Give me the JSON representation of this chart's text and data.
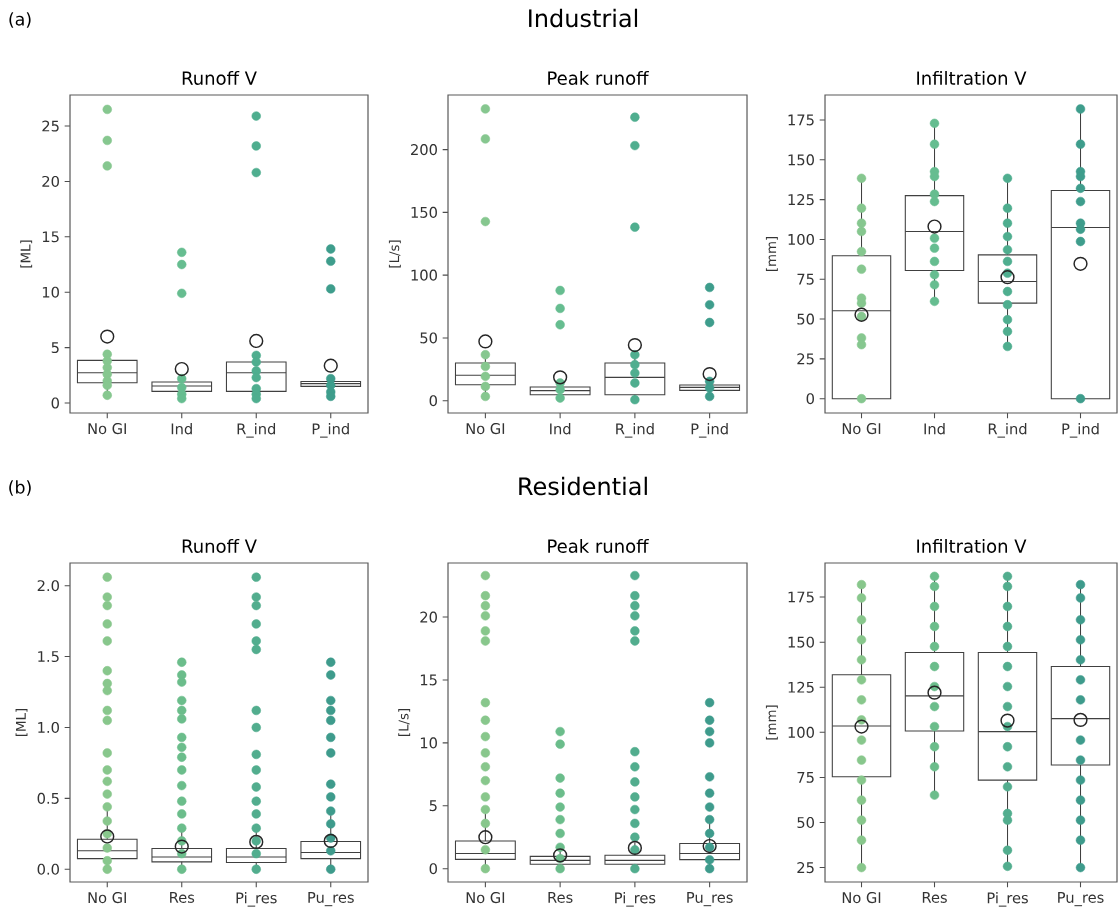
{
  "chart_data": [
    {
      "type": "box",
      "title": "Runoff V",
      "ylabel": "[ML]",
      "annotations": [
        "(a)",
        "Industrial"
      ],
      "categories": [
        "No GI",
        "Ind",
        "R_ind",
        "P_ind"
      ],
      "ylim": [
        -0.9,
        27.8
      ],
      "yticks": [
        0,
        5,
        10,
        15,
        20,
        25
      ],
      "boxes": [
        {
          "low": 0.7,
          "q1": 1.83,
          "median": 2.74,
          "q3": 3.85,
          "high": 4.4,
          "mean": 6.0
        },
        {
          "low": 0.4,
          "q1": 1.05,
          "median": 1.53,
          "q3": 1.9,
          "high": 2.2,
          "mean": 3.07
        },
        {
          "low": 0.4,
          "q1": 1.05,
          "median": 2.74,
          "q3": 3.7,
          "high": 4.3,
          "mean": 5.6
        },
        {
          "low": 0.6,
          "q1": 1.5,
          "median": 1.75,
          "q3": 1.95,
          "high": 2.2,
          "mean": 3.37
        }
      ],
      "series": [
        {
          "type": "scatter",
          "color": "#86c78f",
          "x": [
            "No GI",
            "No GI",
            "No GI",
            "No GI",
            "No GI",
            "No GI",
            "No GI",
            "No GI",
            "No GI",
            "No GI"
          ],
          "values": [
            26.5,
            23.7,
            21.4,
            4.4,
            3.8,
            3.2,
            2.6,
            2.0,
            1.6,
            0.7
          ]
        },
        {
          "type": "scatter",
          "color": "#66bd90",
          "x": [
            "Ind",
            "Ind",
            "Ind",
            "Ind",
            "Ind",
            "Ind",
            "Ind"
          ],
          "values": [
            13.6,
            12.5,
            9.9,
            2.2,
            1.4,
            0.8,
            0.4
          ]
        },
        {
          "type": "scatter",
          "color": "#4fae8f",
          "x": [
            "R_ind",
            "R_ind",
            "R_ind",
            "R_ind",
            "R_ind",
            "R_ind",
            "R_ind",
            "R_ind",
            "R_ind",
            "R_ind"
          ],
          "values": [
            25.9,
            23.2,
            20.8,
            4.3,
            3.7,
            2.9,
            2.3,
            1.3,
            0.8,
            0.4
          ]
        },
        {
          "type": "scatter",
          "color": "#3e9d8c",
          "x": [
            "P_ind",
            "P_ind",
            "P_ind",
            "P_ind",
            "P_ind",
            "P_ind",
            "P_ind"
          ],
          "values": [
            13.9,
            12.8,
            10.3,
            2.2,
            1.6,
            1.0,
            0.6
          ]
        }
      ]
    },
    {
      "type": "box",
      "title": "Peak runoff",
      "ylabel": "[L/s]",
      "categories": [
        "No GI",
        "Ind",
        "R_ind",
        "P_ind"
      ],
      "ylim": [
        -9.8,
        243.5
      ],
      "yticks": [
        0,
        50,
        100,
        150,
        200
      ],
      "boxes": [
        {
          "low": 3.4,
          "q1": 12.7,
          "median": 20.2,
          "q3": 30.0,
          "high": 36.6,
          "mean": 47.2
        },
        {
          "low": 2.1,
          "q1": 4.8,
          "median": 8.0,
          "q3": 10.9,
          "high": 14.1,
          "mean": 18.6
        },
        {
          "low": 0.8,
          "q1": 4.8,
          "median": 18.6,
          "q3": 30.0,
          "high": 36.6,
          "mean": 44.3
        },
        {
          "low": 3.4,
          "q1": 8.2,
          "median": 10.6,
          "q3": 12.5,
          "high": 15.4,
          "mean": 21.2
        }
      ],
      "series": [
        {
          "type": "scatter",
          "color": "#86c78f",
          "x": [
            "No GI",
            "No GI",
            "No GI",
            "No GI",
            "No GI",
            "No GI",
            "No GI",
            "No GI"
          ],
          "values": [
            232.4,
            208.5,
            142.7,
            36.6,
            27.3,
            19.4,
            11.4,
            3.4
          ]
        },
        {
          "type": "scatter",
          "color": "#66bd90",
          "x": [
            "Ind",
            "Ind",
            "Ind",
            "Ind",
            "Ind",
            "Ind"
          ],
          "values": [
            87.8,
            73.5,
            60.5,
            14.1,
            8.8,
            2.1
          ]
        },
        {
          "type": "scatter",
          "color": "#4fae8f",
          "x": [
            "R_ind",
            "R_ind",
            "R_ind",
            "R_ind",
            "R_ind",
            "R_ind",
            "R_ind",
            "R_ind",
            "R_ind"
          ],
          "values": [
            225.8,
            203.2,
            138.2,
            36.6,
            28.7,
            22.0,
            14.1,
            null,
            0.8
          ]
        },
        {
          "type": "scatter",
          "color": "#3e9d8c",
          "x": [
            "P_ind",
            "P_ind",
            "P_ind",
            "P_ind",
            "P_ind",
            "P_ind"
          ],
          "values": [
            90.2,
            76.4,
            62.3,
            15.4,
            10.1,
            3.4
          ]
        }
      ]
    },
    {
      "type": "box",
      "title": "Infiltration V",
      "ylabel": "[mm]",
      "categories": [
        "No GI",
        "Ind",
        "R_ind",
        "P_ind"
      ],
      "ylim": [
        -9.0,
        190.7
      ],
      "yticks": [
        0,
        25,
        50,
        75,
        100,
        125,
        150,
        175
      ],
      "boxes": [
        {
          "low": 0,
          "q1": 0,
          "median": 55.2,
          "q3": 89.7,
          "high": 138.4,
          "mean": 52.7
        },
        {
          "low": 61.1,
          "q1": 80.5,
          "median": 105.0,
          "q3": 127.5,
          "high": 172.9,
          "mean": 108.1
        },
        {
          "low": 32.8,
          "q1": 60.0,
          "median": 73.6,
          "q3": 90.3,
          "high": 138.4,
          "mean": 76.3
        },
        {
          "low": 0,
          "q1": 0,
          "median": 107.5,
          "q3": 130.7,
          "high": 181.9,
          "mean": 84.7
        }
      ],
      "series": [
        {
          "type": "scatter",
          "color": "#86c78f",
          "x": [
            "No GI",
            "No GI",
            "No GI",
            "No GI",
            "No GI",
            "No GI",
            "No GI",
            "No GI",
            "No GI",
            "No GI",
            "No GI",
            "No GI"
          ],
          "values": [
            138.4,
            119.6,
            110.2,
            105.0,
            92.4,
            81.3,
            63.1,
            60.0,
            51.6,
            38.1,
            33.9,
            0
          ]
        },
        {
          "type": "scatter",
          "color": "#66bd90",
          "x": [
            "Ind",
            "Ind",
            "Ind",
            "Ind",
            "Ind",
            "Ind",
            "Ind",
            "Ind",
            "Ind",
            "Ind",
            "Ind",
            "Ind",
            "Ind"
          ],
          "values": [
            172.9,
            159.8,
            142.6,
            139.5,
            128.4,
            123.8,
            null,
            100.8,
            94.5,
            86.2,
            77.8,
            71.5,
            61.1
          ]
        },
        {
          "type": "scatter",
          "color": "#4fae8f",
          "x": [
            "R_ind",
            "R_ind",
            "R_ind",
            "R_ind",
            "R_ind",
            "R_ind",
            "R_ind",
            "R_ind",
            "R_ind",
            "R_ind",
            "R_ind",
            "R_ind"
          ],
          "values": [
            138.4,
            119.6,
            110.2,
            101.8,
            93.5,
            86.2,
            78.8,
            67.3,
            59.0,
            49.6,
            42.2,
            32.8
          ]
        },
        {
          "type": "scatter",
          "color": "#3e9d8c",
          "x": [
            "P_ind",
            "P_ind",
            "P_ind",
            "P_ind",
            "P_ind",
            "P_ind",
            "P_ind",
            "P_ind",
            "P_ind",
            "P_ind"
          ],
          "values": [
            181.9,
            159.8,
            142.6,
            139.5,
            132.1,
            123.8,
            110.2,
            106.4,
            98.7,
            0
          ]
        }
      ]
    },
    {
      "type": "box",
      "title": "Runoff V",
      "ylabel": "[ML]",
      "annotations": [
        "(b)",
        "Residential"
      ],
      "categories": [
        "No GI",
        "Res",
        "Pi_res",
        "Pu_res"
      ],
      "ylim": [
        -0.09,
        2.16
      ],
      "yticks": [
        {
          "value": 0,
          "label": "0.0"
        },
        {
          "value": 0.5,
          "label": "0.5"
        },
        {
          "value": 1,
          "label": "1.0"
        },
        {
          "value": 1.5,
          "label": "1.5"
        },
        {
          "value": 2,
          "label": "2.0"
        }
      ],
      "boxes": [
        {
          "low": 0,
          "q1": 0.075,
          "median": 0.13,
          "q3": 0.212,
          "high": 0.44,
          "mean": 0.231
        },
        {
          "low": 0,
          "q1": 0.052,
          "median": 0.087,
          "q3": 0.146,
          "high": 0.29,
          "mean": 0.16
        },
        {
          "low": 0,
          "q1": 0.047,
          "median": 0.087,
          "q3": 0.146,
          "high": 0.29,
          "mean": 0.193
        },
        {
          "low": 0,
          "q1": 0.075,
          "median": 0.118,
          "q3": 0.196,
          "high": 0.38,
          "mean": 0.2
        }
      ],
      "series": [
        {
          "type": "scatter",
          "color": "#88c78c",
          "x": [
            "No GI",
            "No GI",
            "No GI",
            "No GI",
            "No GI",
            "No GI",
            "No GI",
            "No GI",
            "No GI",
            "No GI",
            "No GI",
            "No GI",
            "No GI",
            "No GI",
            "No GI",
            "No GI",
            "No GI",
            "No GI",
            "No GI",
            "No GI"
          ],
          "values": [
            2.06,
            1.92,
            1.86,
            1.73,
            1.61,
            1.4,
            1.31,
            1.26,
            1.12,
            1.05,
            0.82,
            0.7,
            0.62,
            0.53,
            0.44,
            0.34,
            0.25,
            0.15,
            0.06,
            0
          ]
        },
        {
          "type": "scatter",
          "color": "#6bbd8b",
          "x": [
            "Res",
            "Res",
            "Res",
            "Res",
            "Res",
            "Res",
            "Res",
            "Res",
            "Res",
            "Res",
            "Res",
            "Res",
            "Res",
            "Res",
            "Res",
            "Res",
            "Res"
          ],
          "values": [
            1.46,
            1.37,
            1.32,
            1.19,
            1.12,
            1.06,
            0.93,
            0.86,
            0.79,
            0.7,
            0.59,
            0.48,
            0.39,
            0.29,
            0.2,
            0.11,
            0
          ]
        },
        {
          "type": "scatter",
          "color": "#52ad8e",
          "x": [
            "Pi_res",
            "Pi_res",
            "Pi_res",
            "Pi_res",
            "Pi_res",
            "Pi_res",
            "Pi_res",
            "Pi_res",
            "Pi_res",
            "Pi_res",
            "Pi_res",
            "Pi_res",
            "Pi_res",
            "Pi_res",
            "Pi_res",
            "Pi_res",
            "Pi_res"
          ],
          "values": [
            2.06,
            1.92,
            1.86,
            1.73,
            1.61,
            1.55,
            1.12,
            1.0,
            0.81,
            0.7,
            0.58,
            0.48,
            0.39,
            0.29,
            0.2,
            0.11,
            0
          ]
        },
        {
          "type": "scatter",
          "color": "#3e9b8c",
          "x": [
            "Pu_res",
            "Pu_res",
            "Pu_res",
            "Pu_res",
            "Pu_res",
            "Pu_res",
            "Pu_res",
            "Pu_res",
            "Pu_res",
            "Pu_res",
            "Pu_res",
            "Pu_res",
            "Pu_res",
            "Pu_res"
          ],
          "values": [
            1.46,
            1.37,
            1.19,
            1.12,
            1.05,
            0.93,
            0.82,
            0.6,
            0.51,
            0.41,
            0.32,
            0.22,
            0.13,
            0
          ]
        }
      ]
    },
    {
      "type": "box",
      "title": "Peak runoff",
      "ylabel": "[L/s]",
      "categories": [
        "No GI",
        "Res",
        "Pi_res",
        "Pu_res"
      ],
      "ylim": [
        -1.06,
        24.3
      ],
      "yticks": [
        0,
        5,
        10,
        15,
        20
      ],
      "boxes": [
        {
          "low": 0,
          "q1": 0.74,
          "median": 1.2,
          "q3": 2.2,
          "high": 4.4,
          "mean": 2.5
        },
        {
          "low": 0,
          "q1": 0.35,
          "median": 0.66,
          "q3": 0.98,
          "high": 1.9,
          "mean": 1.06
        },
        {
          "low": 0,
          "q1": 0.35,
          "median": 0.66,
          "q3": 1.06,
          "high": 2.1,
          "mean": 1.65
        },
        {
          "low": 0,
          "q1": 0.72,
          "median": 1.2,
          "q3": 2.0,
          "high": 3.9,
          "mean": 1.8
        }
      ],
      "series": [
        {
          "type": "scatter",
          "color": "#88c78c",
          "x": [
            "No GI",
            "No GI",
            "No GI",
            "No GI",
            "No GI",
            "No GI",
            "No GI",
            "No GI",
            "No GI",
            "No GI",
            "No GI",
            "No GI",
            "No GI",
            "No GI",
            "No GI",
            "No GI",
            "No GI",
            "No GI"
          ],
          "values": [
            23.3,
            21.7,
            20.9,
            20.1,
            18.9,
            18.1,
            13.2,
            11.8,
            10.5,
            9.2,
            8.1,
            7.0,
            5.7,
            4.7,
            3.6,
            null,
            1.5,
            0
          ]
        },
        {
          "type": "scatter",
          "color": "#6bbd8b",
          "x": [
            "Res",
            "Res",
            "Res",
            "Res",
            "Res",
            "Res",
            "Res",
            "Res",
            "Res",
            "Res"
          ],
          "values": [
            10.9,
            9.9,
            7.2,
            6.0,
            4.9,
            3.9,
            2.8,
            1.7,
            0.8,
            0
          ]
        },
        {
          "type": "scatter",
          "color": "#52ad8e",
          "x": [
            "Pi_res",
            "Pi_res",
            "Pi_res",
            "Pi_res",
            "Pi_res",
            "Pi_res",
            "Pi_res",
            "Pi_res",
            "Pi_res",
            "Pi_res",
            "Pi_res",
            "Pi_res",
            "Pi_res",
            "Pi_res",
            "Pi_res"
          ],
          "values": [
            23.3,
            21.7,
            20.9,
            20.1,
            18.9,
            18.1,
            9.3,
            8.1,
            6.9,
            5.7,
            4.7,
            3.6,
            2.5,
            1.5,
            0
          ]
        },
        {
          "type": "scatter",
          "color": "#3e9b8c",
          "x": [
            "Pu_res",
            "Pu_res",
            "Pu_res",
            "Pu_res",
            "Pu_res",
            "Pu_res",
            "Pu_res",
            "Pu_res",
            "Pu_res",
            "Pu_res",
            "Pu_res",
            "Pu_res"
          ],
          "values": [
            13.2,
            11.8,
            10.9,
            10.0,
            7.3,
            6.0,
            4.9,
            3.9,
            2.8,
            1.7,
            0.7,
            0
          ]
        }
      ]
    },
    {
      "type": "box",
      "title": "Infiltration V",
      "ylabel": "[mm]",
      "categories": [
        "No GI",
        "Res",
        "Pi_res",
        "Pu_res"
      ],
      "ylim": [
        17.0,
        193.9
      ],
      "yticks": [
        25,
        50,
        75,
        100,
        125,
        150,
        175
      ],
      "boxes": [
        {
          "low": 25,
          "q1": 75.4,
          "median": 103.5,
          "q3": 131.9,
          "high": 181.9,
          "mean": 103.2
        },
        {
          "low": 65.2,
          "q1": 100.7,
          "median": 120.2,
          "q3": 144.3,
          "high": 186.5,
          "mean": 122.0
        },
        {
          "low": 25.7,
          "q1": 73.5,
          "median": 100.4,
          "q3": 144.3,
          "high": 186.5,
          "mean": 106.5
        },
        {
          "low": 25,
          "q1": 81.9,
          "median": 107.6,
          "q3": 136.5,
          "high": 181.9,
          "mean": 106.9
        }
      ],
      "series": [
        {
          "type": "scatter",
          "color": "#88c78c",
          "x": [
            "No GI",
            "No GI",
            "No GI",
            "No GI",
            "No GI",
            "No GI",
            "No GI",
            "No GI",
            "No GI",
            "No GI",
            "No GI",
            "No GI",
            "No GI",
            "No GI",
            "No GI"
          ],
          "values": [
            181.9,
            174.5,
            162.4,
            151.3,
            140.2,
            129.1,
            118.0,
            106.9,
            95.7,
            84.6,
            73.5,
            62.4,
            51.3,
            40.2,
            25
          ]
        },
        {
          "type": "scatter",
          "color": "#6bbd8b",
          "x": [
            "Res",
            "Res",
            "Res",
            "Res",
            "Res",
            "Res",
            "Res",
            "Res",
            "Res",
            "Res",
            "Res",
            "Res"
          ],
          "values": [
            186.5,
            180.9,
            169.8,
            158.7,
            147.6,
            136.5,
            125.4,
            114.3,
            103.2,
            92.0,
            80.9,
            65.2
          ]
        },
        {
          "type": "scatter",
          "color": "#52ad8e",
          "x": [
            "Pi_res",
            "Pi_res",
            "Pi_res",
            "Pi_res",
            "Pi_res",
            "Pi_res",
            "Pi_res",
            "Pi_res",
            "Pi_res",
            "Pi_res",
            "Pi_res",
            "Pi_res",
            "Pi_res",
            "Pi_res",
            "Pi_res",
            "Pi_res"
          ],
          "values": [
            186.5,
            180.9,
            169.8,
            158.7,
            147.6,
            136.5,
            125.4,
            114.3,
            103.2,
            92.0,
            80.9,
            69.8,
            55.0,
            51.3,
            34.6,
            25.7
          ]
        },
        {
          "type": "scatter",
          "color": "#3e9b8c",
          "x": [
            "Pu_res",
            "Pu_res",
            "Pu_res",
            "Pu_res",
            "Pu_res",
            "Pu_res",
            "Pu_res",
            "Pu_res",
            "Pu_res",
            "Pu_res",
            "Pu_res",
            "Pu_res",
            "Pu_res",
            "Pu_res",
            "Pu_res"
          ],
          "values": [
            181.9,
            174.5,
            162.4,
            151.3,
            140.2,
            129.1,
            118.0,
            null,
            95.7,
            84.6,
            73.5,
            62.4,
            51.3,
            40.2,
            25
          ]
        }
      ]
    }
  ]
}
